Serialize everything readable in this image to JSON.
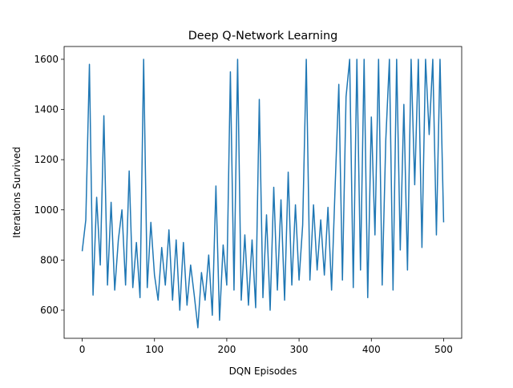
{
  "chart_data": {
    "type": "line",
    "title": "Deep Q-Network Learning",
    "x_label": "DQN Episodes",
    "y_label": "Iterations Survived",
    "color": "#1f77b4",
    "x": [
      0,
      5,
      10,
      15,
      20,
      25,
      30,
      35,
      40,
      45,
      50,
      55,
      60,
      65,
      70,
      75,
      80,
      85,
      90,
      95,
      100,
      105,
      110,
      115,
      120,
      125,
      130,
      135,
      140,
      145,
      150,
      155,
      160,
      165,
      170,
      175,
      180,
      185,
      190,
      195,
      200,
      205,
      210,
      215,
      220,
      225,
      230,
      235,
      240,
      245,
      250,
      255,
      260,
      265,
      270,
      275,
      280,
      285,
      290,
      295,
      300,
      305,
      310,
      315,
      320,
      325,
      330,
      335,
      340,
      345,
      350,
      355,
      360,
      365,
      370,
      375,
      380,
      385,
      390,
      395,
      400,
      405,
      410,
      415,
      420,
      425,
      430,
      435,
      440,
      445,
      450,
      455,
      460,
      465,
      470,
      475,
      480,
      485,
      490,
      495,
      500
    ],
    "values": [
      835,
      960,
      1580,
      660,
      1050,
      780,
      1375,
      700,
      1030,
      680,
      880,
      1000,
      700,
      1155,
      690,
      870,
      650,
      1600,
      690,
      950,
      740,
      640,
      850,
      700,
      920,
      640,
      880,
      600,
      870,
      620,
      780,
      660,
      530,
      750,
      640,
      820,
      580,
      1095,
      560,
      860,
      700,
      1550,
      680,
      1600,
      640,
      900,
      620,
      880,
      610,
      1440,
      650,
      980,
      600,
      1090,
      680,
      1040,
      640,
      1150,
      700,
      1020,
      720,
      940,
      1600,
      720,
      1020,
      760,
      960,
      740,
      1010,
      680,
      1100,
      1500,
      720,
      1450,
      1600,
      690,
      1600,
      760,
      1600,
      650,
      1370,
      900,
      1600,
      700,
      1280,
      1600,
      680,
      1600,
      840,
      1420,
      760,
      1600,
      1100,
      1600,
      850,
      1600,
      1300,
      1600,
      900,
      1600,
      950
    ],
    "xlim": [
      -25,
      525
    ],
    "ylim": [
      488,
      1651
    ],
    "xticks": [
      0,
      100,
      200,
      300,
      400,
      500
    ],
    "yticks": [
      600,
      800,
      1000,
      1200,
      1400,
      1600
    ]
  }
}
